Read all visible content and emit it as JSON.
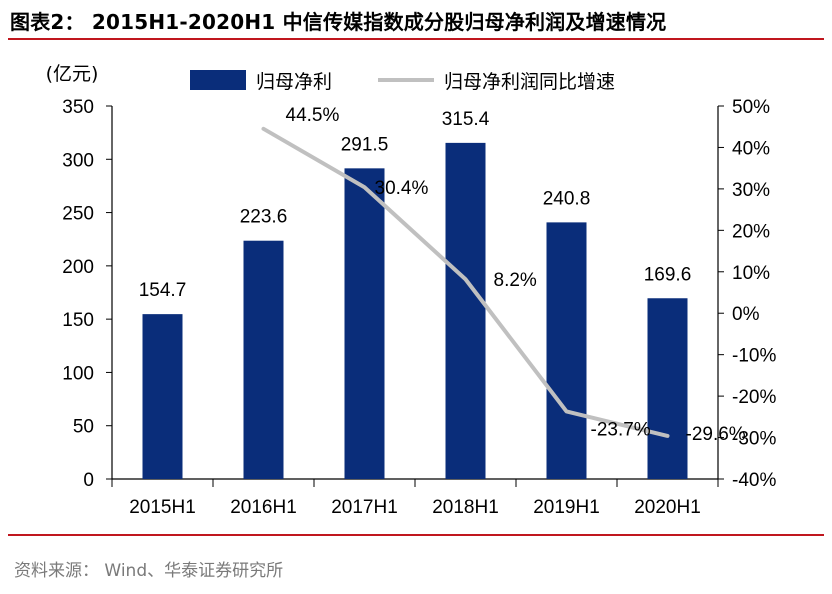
{
  "title": "图表2：  2015H1-2020H1 中信传媒指数成分股归母净利润及增速情况",
  "source": "资料来源：  Wind、华泰证券研究所",
  "chart_data": {
    "type": "bar",
    "categories": [
      "2015H1",
      "2016H1",
      "2017H1",
      "2018H1",
      "2019H1",
      "2020H1"
    ],
    "ylabel": "(亿元)",
    "ylim": [
      0,
      350
    ],
    "y_ticks": [
      "0",
      "50",
      "100",
      "150",
      "200",
      "250",
      "300",
      "350"
    ],
    "y2lim": [
      -40,
      50
    ],
    "y2_ticks": [
      "-40%",
      "-30%",
      "-20%",
      "-10%",
      "0%",
      "10%",
      "20%",
      "30%",
      "40%",
      "50%"
    ],
    "legend_position": "top",
    "series": [
      {
        "name": "归母净利",
        "type": "bar",
        "axis": "left",
        "color": "#0a2d7a",
        "values": [
          154.7,
          223.6,
          291.5,
          315.4,
          240.8,
          169.6
        ],
        "labels": [
          "154.7",
          "223.6",
          "291.5",
          "315.4",
          "240.8",
          "169.6"
        ]
      },
      {
        "name": "归母净利润同比增速",
        "type": "line",
        "axis": "right",
        "color": "#c0c0c0",
        "values": [
          null,
          44.5,
          30.4,
          8.2,
          -23.7,
          -29.6
        ],
        "labels": [
          "",
          "44.5%",
          "30.4%",
          "8.2%",
          "-23.7%",
          "-29.6%"
        ]
      }
    ]
  }
}
